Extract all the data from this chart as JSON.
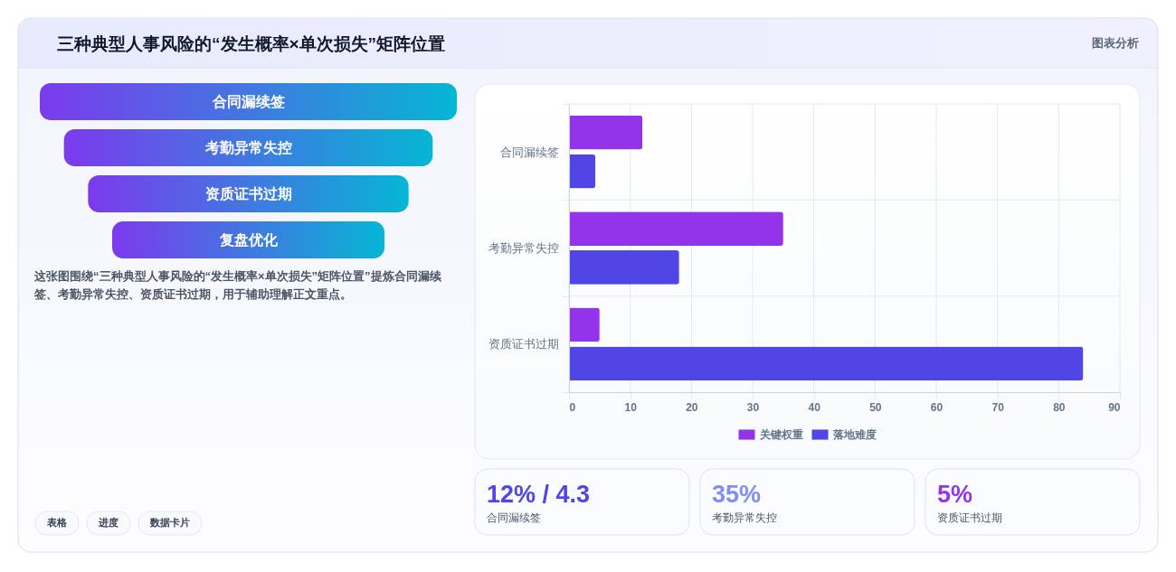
{
  "chart_data": [
    {
      "type": "other",
      "title": "三种典型人事风险的“发生概率×单次损失”矩阵位置",
      "subtitle": "图表分析",
      "categories": [
        "合同漏续签",
        "考勤异常失控",
        "资质证书过期",
        "复盘优化"
      ],
      "annotations": [
        "这张图围绕“三种典型人事风险的“发生概率×单次损失”矩阵位置”提炼合同漏续签、考勤异常失控、资质证书过期，用于辅助理解正文重点。",
        "表格",
        "进度",
        "数据卡片"
      ]
    },
    {
      "type": "bar",
      "orientation": "horizontal",
      "categories": [
        "合同漏续签",
        "考勤异常失控",
        "资质证书过期"
      ],
      "series": [
        {
          "name": "关键权重",
          "color": "#9333ea",
          "values": [
            12,
            35,
            5
          ]
        },
        {
          "name": "落地难度",
          "color": "#4f46e5",
          "values": [
            4.3,
            18,
            84
          ]
        }
      ],
      "xlim": [
        0,
        90
      ],
      "xticks": [
        0,
        10,
        20,
        30,
        40,
        50,
        60,
        70,
        80,
        90
      ],
      "grid": true,
      "legend": "bottom"
    },
    {
      "type": "other",
      "annotations": [
        "12% / 4.3",
        "合同漏续签",
        "35%",
        "考勤异常失控",
        "5%",
        "资质证书过期"
      ],
      "colors": [
        "#4f46e5",
        "#818cf8",
        "#9333ea"
      ]
    }
  ]
}
